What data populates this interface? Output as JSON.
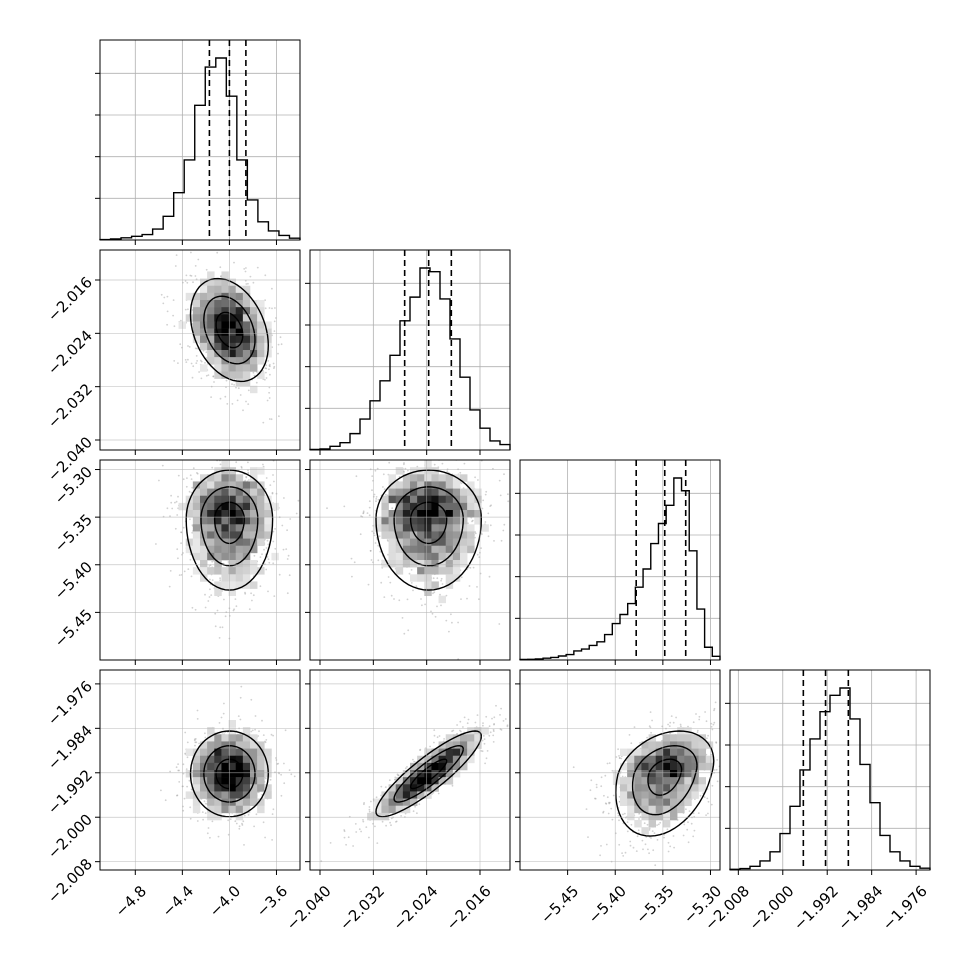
{
  "colors": {
    "axis": "#000000",
    "grid": "#b0b0b0",
    "points": "#9a9a9a",
    "hist": "#000000",
    "quantile_line": "#000000",
    "contour": "#000000",
    "density_dark": "#000000",
    "density_light": "#f4f4f4"
  },
  "chart_data": {
    "type": "corner",
    "title": "",
    "grid": true,
    "parameters": [
      {
        "xlim": [
          -5.1,
          -3.4
        ],
        "ticks": [
          -4.8,
          -4.4,
          -4.0,
          -3.6
        ],
        "tick_labels": [
          "−4.8",
          "−4.4",
          "−4.0",
          "−3.6"
        ],
        "quantiles": [
          -4.17,
          -4.0,
          -3.86
        ],
        "hist_values": [
          0.002,
          0.006,
          0.012,
          0.02,
          0.03,
          0.06,
          0.13,
          0.26,
          0.44,
          0.74,
          0.95,
          1.0,
          0.79,
          0.44,
          0.22,
          0.1,
          0.05,
          0.025,
          0.01
        ]
      },
      {
        "xlim": [
          -2.0415,
          -2.0115
        ],
        "ticks": [
          -2.04,
          -2.032,
          -2.024,
          -2.016
        ],
        "tick_labels": [
          "−2.040",
          "−2.032",
          "−2.024",
          "−2.016"
        ],
        "quantiles": [
          -2.0273,
          -2.0237,
          -2.0203
        ],
        "hist_values": [
          0.003,
          0.006,
          0.02,
          0.04,
          0.09,
          0.17,
          0.27,
          0.38,
          0.52,
          0.71,
          0.84,
          1.0,
          0.98,
          0.83,
          0.61,
          0.4,
          0.22,
          0.12,
          0.05,
          0.03
        ]
      },
      {
        "xlim": [
          -5.5,
          -5.29
        ],
        "ticks": [
          -5.45,
          -5.4,
          -5.35,
          -5.3
        ],
        "tick_labels": [
          "−5.45",
          "−5.40",
          "−5.35",
          "−5.30"
        ],
        "quantiles": [
          -5.378,
          -5.348,
          -5.326
        ],
        "hist_values": [
          0.003,
          0.004,
          0.006,
          0.01,
          0.014,
          0.022,
          0.03,
          0.05,
          0.06,
          0.08,
          0.1,
          0.14,
          0.2,
          0.25,
          0.31,
          0.4,
          0.5,
          0.64,
          0.75,
          0.85,
          1.0,
          0.93,
          0.6,
          0.28,
          0.07,
          0.02
        ]
      },
      {
        "xlim": [
          -2.0095,
          -1.9735
        ],
        "ticks": [
          -2.008,
          -2.0,
          -1.992,
          -1.984,
          -1.976
        ],
        "tick_labels": [
          "−2.008",
          "−2.000",
          "−1.992",
          "−1.984",
          "−1.976"
        ],
        "quantiles": [
          -1.9963,
          -1.9923,
          -1.9882
        ],
        "hist_values": [
          0.004,
          0.008,
          0.02,
          0.05,
          0.1,
          0.2,
          0.35,
          0.55,
          0.72,
          0.87,
          0.96,
          1.0,
          0.83,
          0.58,
          0.37,
          0.19,
          0.1,
          0.05,
          0.02,
          0.01
        ]
      }
    ],
    "joint": [
      {
        "col": 0,
        "row": 1,
        "center": [
          -4.0,
          -2.0235
        ],
        "spread": [
          0.18,
          0.0042
        ],
        "corr": -0.3,
        "skew": 0.0
      },
      {
        "col": 0,
        "row": 2,
        "center": [
          -4.0,
          -5.352
        ],
        "spread": [
          0.2,
          0.028
        ],
        "corr": 0.0,
        "skew": -1.0
      },
      {
        "col": 1,
        "row": 2,
        "center": [
          -2.0237,
          -5.352
        ],
        "spread": [
          0.0043,
          0.028
        ],
        "corr": 0.0,
        "skew": -1.0
      },
      {
        "col": 0,
        "row": 3,
        "center": [
          -4.0,
          -1.9922
        ],
        "spread": [
          0.18,
          0.0042
        ],
        "corr": 0.0,
        "skew": 0.0
      },
      {
        "col": 1,
        "row": 3,
        "center": [
          -2.0237,
          -1.9922
        ],
        "spread": [
          0.0043,
          0.0042
        ],
        "corr": 0.88,
        "skew": 0.0
      },
      {
        "col": 2,
        "row": 3,
        "center": [
          -5.348,
          -1.9922
        ],
        "spread": [
          0.028,
          0.0042
        ],
        "corr": 0.3,
        "skew": -1.0
      }
    ]
  }
}
